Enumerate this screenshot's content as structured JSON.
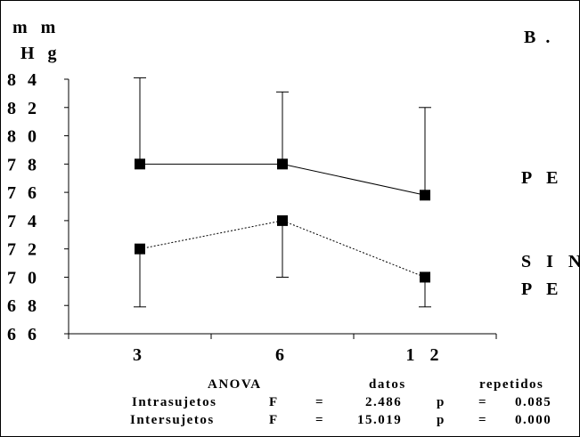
{
  "chart_data": {
    "type": "line",
    "ylabel_line1": "m m",
    "ylabel_line2": "H g",
    "panel_label": "B .",
    "categories": [
      "3",
      "6",
      "1 2"
    ],
    "ylim": [
      66,
      84
    ],
    "yticks": [
      {
        "value": 84,
        "label": "8 4"
      },
      {
        "value": 82,
        "label": "8 2"
      },
      {
        "value": 80,
        "label": "8 0"
      },
      {
        "value": 78,
        "label": "7 8"
      },
      {
        "value": 76,
        "label": "7 6"
      },
      {
        "value": 74,
        "label": "7 4"
      },
      {
        "value": 72,
        "label": "7 2"
      },
      {
        "value": 70,
        "label": "7 0"
      },
      {
        "value": 68,
        "label": "6 8"
      },
      {
        "value": 66,
        "label": "6 6"
      }
    ],
    "series": [
      {
        "name": "P E",
        "values": [
          78,
          78,
          75.8
        ],
        "error_upper": [
          84.1,
          83.1,
          82
        ],
        "error_lower": [
          null,
          null,
          null
        ],
        "line_style": "solid",
        "marker": "square",
        "color": "#000000",
        "label_lines": [
          "P E"
        ]
      },
      {
        "name": "SIN PE",
        "values": [
          72,
          74,
          70
        ],
        "error_upper": [
          null,
          null,
          null
        ],
        "error_lower": [
          67.9,
          70,
          67.9
        ],
        "line_style": "dotted",
        "marker": "square",
        "color": "#000000",
        "label_lines": [
          "S I N",
          "P E"
        ]
      }
    ],
    "annotations": {
      "anova_row": [
        "ANOVA",
        "datos",
        "repetidos"
      ],
      "intra_row": [
        "Intrasujetos",
        "F",
        "=",
        "2.486",
        "p",
        "=",
        "0.085"
      ],
      "inter_row": [
        "Intersujetos",
        "F",
        "=",
        "15.019",
        "p",
        "=",
        "0.000"
      ]
    }
  }
}
